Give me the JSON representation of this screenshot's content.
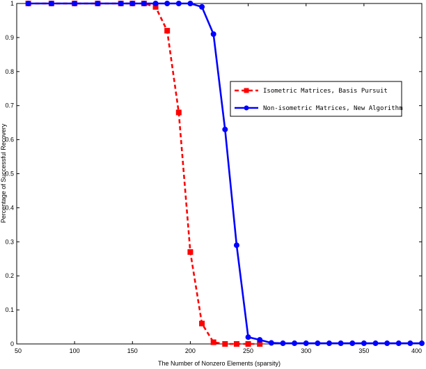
{
  "chart_data": {
    "type": "line",
    "xlabel": "The Number of Nonzero Elements (sparsity)",
    "ylabel": "Percentage of Successful Recovery",
    "xlim": [
      50,
      400
    ],
    "ylim": [
      0,
      1
    ],
    "xticks": [
      50,
      100,
      150,
      200,
      250,
      300,
      350,
      400
    ],
    "yticks": [
      0,
      0.1,
      0.2,
      0.3,
      0.4,
      0.5,
      0.6,
      0.7,
      0.8,
      0.9,
      1
    ],
    "grid": false,
    "legend_position": "top-right",
    "series": [
      {
        "name": "Isometric Matrices, Basis Pursuit",
        "color": "#ff0000",
        "line_style": "dashed",
        "marker": "square",
        "x": [
          60,
          80,
          100,
          120,
          140,
          150,
          160,
          170,
          180,
          190,
          200,
          210,
          220,
          230,
          240,
          250,
          260
        ],
        "y": [
          1,
          1,
          1,
          1,
          1,
          1,
          1,
          0.99,
          0.92,
          0.68,
          0.27,
          0.06,
          0.005,
          0,
          0,
          0,
          0
        ]
      },
      {
        "name": "Non-isometric Matrices, New Algorithm",
        "color": "#0000ff",
        "line_style": "solid",
        "marker": "circle",
        "x": [
          60,
          80,
          100,
          120,
          140,
          150,
          160,
          170,
          180,
          190,
          200,
          210,
          220,
          230,
          240,
          250,
          260,
          270,
          280,
          290,
          300,
          310,
          320,
          330,
          340,
          350,
          360,
          370,
          380,
          390,
          400
        ],
        "y": [
          1,
          1,
          1,
          1,
          1,
          1,
          1,
          1,
          1,
          1,
          1,
          0.99,
          0.91,
          0.63,
          0.29,
          0.02,
          0.012,
          0.003,
          0.002,
          0.002,
          0.002,
          0.002,
          0.002,
          0.002,
          0.002,
          0.002,
          0.002,
          0.002,
          0.002,
          0.002,
          0.002
        ]
      }
    ]
  }
}
